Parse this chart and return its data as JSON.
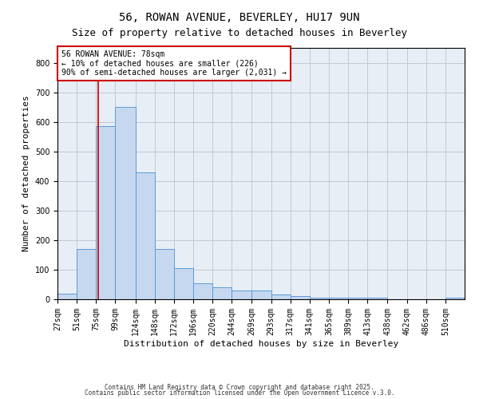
{
  "title1": "56, ROWAN AVENUE, BEVERLEY, HU17 9UN",
  "title2": "Size of property relative to detached houses in Beverley",
  "xlabel": "Distribution of detached houses by size in Beverley",
  "ylabel": "Number of detached properties",
  "bins": [
    "27sqm",
    "51sqm",
    "75sqm",
    "99sqm",
    "124sqm",
    "148sqm",
    "172sqm",
    "196sqm",
    "220sqm",
    "244sqm",
    "269sqm",
    "293sqm",
    "317sqm",
    "341sqm",
    "365sqm",
    "389sqm",
    "413sqm",
    "438sqm",
    "462sqm",
    "486sqm",
    "510sqm"
  ],
  "bin_edges": [
    27,
    51,
    75,
    99,
    124,
    148,
    172,
    196,
    220,
    244,
    269,
    293,
    317,
    341,
    365,
    389,
    413,
    438,
    462,
    486,
    510
  ],
  "values": [
    20,
    170,
    585,
    650,
    430,
    170,
    105,
    55,
    40,
    30,
    30,
    15,
    10,
    5,
    5,
    5,
    5,
    0,
    0,
    0,
    5
  ],
  "bar_color": "#c5d8f0",
  "bar_edge_color": "#5b9bd5",
  "property_line_x": 78,
  "property_line_color": "#cc0000",
  "annotation_text": "56 ROWAN AVENUE: 78sqm\n← 10% of detached houses are smaller (226)\n90% of semi-detached houses are larger (2,031) →",
  "annotation_box_color": "#cc0000",
  "ylim": [
    0,
    850
  ],
  "yticks": [
    0,
    100,
    200,
    300,
    400,
    500,
    600,
    700,
    800
  ],
  "grid_color": "#c0c8d8",
  "background_color": "#e8eef5",
  "footer1": "Contains HM Land Registry data © Crown copyright and database right 2025.",
  "footer2": "Contains public sector information licensed under the Open Government Licence v.3.0.",
  "title1_fontsize": 10,
  "title2_fontsize": 9,
  "annotation_fontsize": 7,
  "xlabel_fontsize": 8,
  "ylabel_fontsize": 8,
  "tick_fontsize": 7,
  "footer_fontsize": 5.5
}
